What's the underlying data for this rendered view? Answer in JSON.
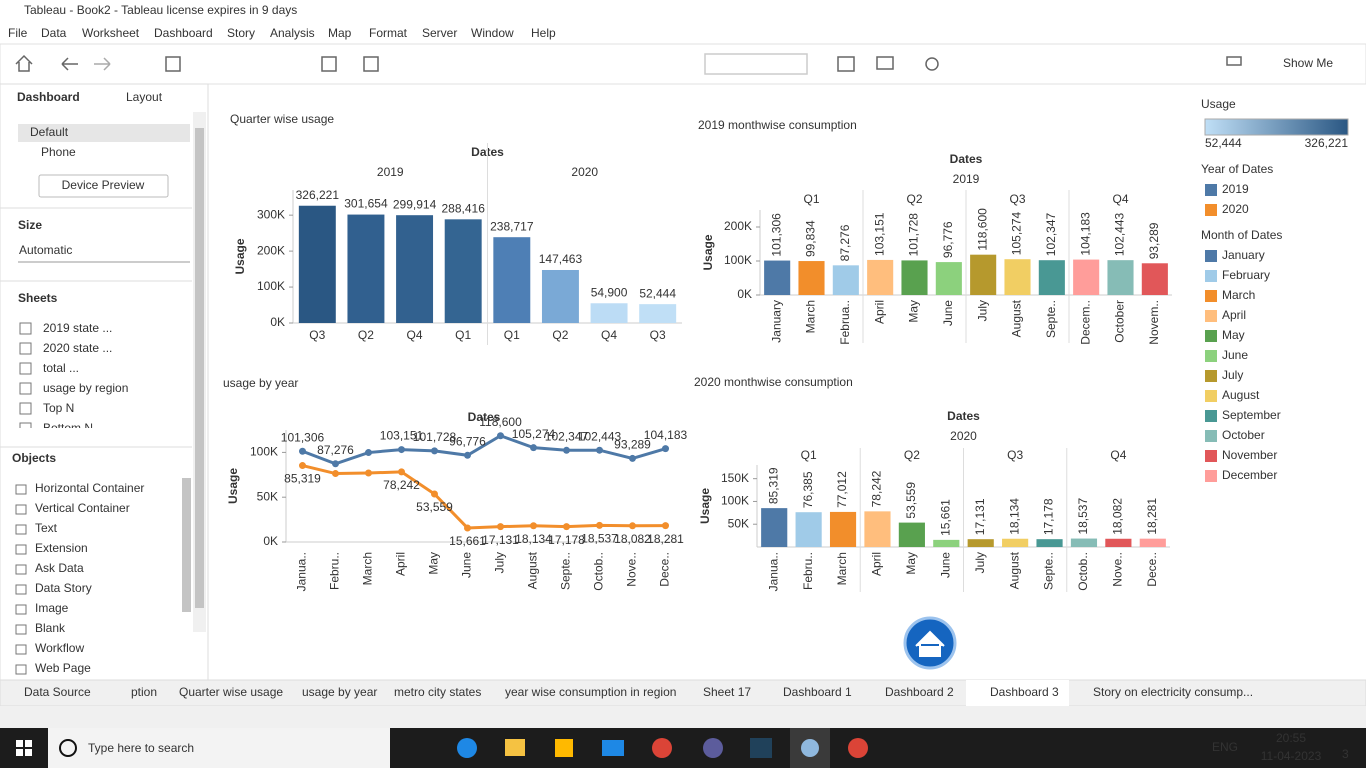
{
  "window": {
    "title": "Tableau - Book2 - Tableau license expires in 9 days"
  },
  "menu": [
    "File",
    "Data",
    "Worksheet",
    "Dashboard",
    "Story",
    "Analysis",
    "Map",
    "Format",
    "Server",
    "Window",
    "Help"
  ],
  "toolbar": {
    "show_me": "Show Me"
  },
  "side": {
    "tabs": [
      "Dashboard",
      "Layout"
    ],
    "devices": [
      "Default",
      "Phone"
    ],
    "device_preview": "Device Preview",
    "size_title": "Size",
    "size_value": "Automatic",
    "sheets_title": "Sheets",
    "sheets": [
      "2019 state ...",
      "2020 state ...",
      "total ...",
      "usage by region",
      "Top N",
      "Bottom N"
    ],
    "objects_title": "Objects",
    "objects": [
      "Horizontal Container",
      "Vertical Container",
      "Text",
      "Extension",
      "Ask Data",
      "Data Story",
      "Image",
      "Blank",
      "Workflow",
      "Web Page"
    ]
  },
  "charts": [
    {
      "type": "bar",
      "title": "Quarter wise usage",
      "column_header": "Dates",
      "y_label": "Usage",
      "ylim": [
        0,
        370000
      ],
      "yticks": [
        {
          "value": 0,
          "label": "0K"
        },
        {
          "value": 100000,
          "label": "100K"
        },
        {
          "value": 200000,
          "label": "200K"
        },
        {
          "value": 300000,
          "label": "300K"
        }
      ],
      "groups": [
        {
          "label": "2019",
          "categories": [
            "Q3",
            "Q2",
            "Q4",
            "Q1"
          ],
          "values": [
            326221,
            301654,
            299914,
            288416
          ],
          "value_labels": [
            "326,221",
            "301,654",
            "299,914",
            "288,416"
          ],
          "colors": [
            "#2a5783",
            "#31608f",
            "#32618f",
            "#346592"
          ]
        },
        {
          "label": "2020",
          "categories": [
            "Q1",
            "Q2",
            "Q4",
            "Q3"
          ],
          "values": [
            238717,
            147463,
            54900,
            52444
          ],
          "value_labels": [
            "238,717",
            "147,463",
            "54,900",
            "52,444"
          ],
          "colors": [
            "#4e7fb5",
            "#7aa9d6",
            "#bcdcf5",
            "#c0dff6"
          ]
        }
      ]
    },
    {
      "type": "bar",
      "title": "2019 monthwise consumption",
      "column_header": "Dates",
      "year": "2019",
      "y_label": "Usage",
      "ylim": [
        0,
        250000
      ],
      "yticks": [
        {
          "value": 0,
          "label": "0K"
        },
        {
          "value": 100000,
          "label": "100K"
        },
        {
          "value": 200000,
          "label": "200K"
        }
      ],
      "groups": [
        {
          "label": "Q1",
          "categories": [
            "January",
            "March",
            "Februa.."
          ],
          "values": [
            101306,
            99834,
            87276
          ],
          "value_labels": [
            "101,306",
            "99,834",
            "87,276"
          ],
          "colors": [
            "#4e79a7",
            "#f28e2b",
            "#a0cbe8"
          ]
        },
        {
          "label": "Q2",
          "categories": [
            "April",
            "May",
            "June"
          ],
          "values": [
            103151,
            101728,
            96776
          ],
          "value_labels": [
            "103,151",
            "101,728",
            "96,776"
          ],
          "colors": [
            "#ffbe7d",
            "#59a14f",
            "#8cd17d"
          ]
        },
        {
          "label": "Q3",
          "categories": [
            "July",
            "August",
            "Septe.."
          ],
          "values": [
            118600,
            105274,
            102347
          ],
          "value_labels": [
            "118,600",
            "105,274",
            "102,347"
          ],
          "colors": [
            "#b6992d",
            "#f1ce63",
            "#499894"
          ]
        },
        {
          "label": "Q4",
          "categories": [
            "Decem..",
            "October",
            "Novem.."
          ],
          "values": [
            104183,
            102443,
            93289
          ],
          "value_labels": [
            "104,183",
            "102,443",
            "93,289"
          ],
          "colors": [
            "#ff9d9a",
            "#86bcb6",
            "#e15759"
          ]
        }
      ]
    },
    {
      "type": "line",
      "title": "usage by year",
      "column_header": "Dates",
      "y_label": "Usage",
      "ylim": [
        0,
        125000
      ],
      "yticks": [
        {
          "value": 0,
          "label": "0K"
        },
        {
          "value": 50000,
          "label": "50K"
        },
        {
          "value": 100000,
          "label": "100K"
        }
      ],
      "categories": [
        "Janua..",
        "Febru..",
        "March",
        "April",
        "May",
        "June",
        "July",
        "August",
        "Septe..",
        "Octob..",
        "Nove..",
        "Dece.."
      ],
      "series": [
        {
          "name": "2019",
          "color": "#4e79a7",
          "values": [
            101306,
            87276,
            99834,
            103151,
            101728,
            96776,
            118600,
            105274,
            102347,
            102443,
            93289,
            104183
          ],
          "value_labels": [
            "101,306",
            "87,276",
            null,
            "103,151",
            "101,728",
            "96,776",
            "118,600",
            "105,274",
            "102,347",
            "102,443",
            "93,289",
            "104,183"
          ]
        },
        {
          "name": "2020",
          "color": "#f28e2b",
          "values": [
            85319,
            76385,
            77012,
            78242,
            53559,
            15661,
            17131,
            18134,
            17178,
            18537,
            18082,
            18281
          ],
          "value_labels": [
            "85,319",
            null,
            null,
            "78,242",
            "53,559",
            "15,661",
            "17,131",
            "18,134",
            "17,178",
            "18,537",
            "18,082",
            "18,281"
          ]
        }
      ]
    },
    {
      "type": "bar",
      "title": "2020 monthwise consumption",
      "column_header": "Dates",
      "year": "2020",
      "y_label": "Usage",
      "ylim": [
        0,
        180000
      ],
      "yticks": [
        {
          "value": 50000,
          "label": "50K"
        },
        {
          "value": 100000,
          "label": "100K"
        },
        {
          "value": 150000,
          "label": "150K"
        }
      ],
      "groups": [
        {
          "label": "Q1",
          "categories": [
            "Janua..",
            "Febru..",
            "March"
          ],
          "values": [
            85319,
            76385,
            77012
          ],
          "value_labels": [
            "85,319",
            "76,385",
            "77,012"
          ],
          "colors": [
            "#4e79a7",
            "#a0cbe8",
            "#f28e2b"
          ]
        },
        {
          "label": "Q2",
          "categories": [
            "April",
            "May",
            "June"
          ],
          "values": [
            78242,
            53559,
            15661
          ],
          "value_labels": [
            "78,242",
            "53,559",
            "15,661"
          ],
          "colors": [
            "#ffbe7d",
            "#59a14f",
            "#8cd17d"
          ]
        },
        {
          "label": "Q3",
          "categories": [
            "July",
            "August",
            "Septe.."
          ],
          "values": [
            17131,
            18134,
            17178
          ],
          "value_labels": [
            "17,131",
            "18,134",
            "17,178"
          ],
          "colors": [
            "#b6992d",
            "#f1ce63",
            "#499894"
          ]
        },
        {
          "label": "Q4",
          "categories": [
            "Octob..",
            "Nove..",
            "Dece.."
          ],
          "values": [
            18537,
            18082,
            18281
          ],
          "value_labels": [
            "18,537",
            "18,082",
            "18,281"
          ],
          "colors": [
            "#86bcb6",
            "#e15759",
            "#ff9d9a"
          ]
        }
      ]
    }
  ],
  "legend": {
    "usage_title": "Usage",
    "usage_range": [
      {
        "value": 52444,
        "label": "52,444"
      },
      {
        "value": 326221,
        "label": "326,221"
      }
    ],
    "gradient": [
      "#c0dff6",
      "#2a5783"
    ],
    "year_title": "Year of Dates",
    "month_title": "Month of Dates",
    "months": [
      {
        "name": "January",
        "color": "#4e79a7"
      },
      {
        "name": "February",
        "color": "#a0cbe8"
      },
      {
        "name": "March",
        "color": "#f28e2b"
      },
      {
        "name": "April",
        "color": "#ffbe7d"
      },
      {
        "name": "May",
        "color": "#59a14f"
      },
      {
        "name": "June",
        "color": "#8cd17d"
      },
      {
        "name": "July",
        "color": "#b6992d"
      },
      {
        "name": "August",
        "color": "#f1ce63"
      },
      {
        "name": "September",
        "color": "#499894"
      },
      {
        "name": "October",
        "color": "#86bcb6"
      },
      {
        "name": "November",
        "color": "#e15759"
      },
      {
        "name": "December",
        "color": "#ff9d9a"
      }
    ]
  },
  "tabs": [
    "Data Source",
    "ption",
    "Quarter wise usage",
    "usage by year",
    "metro city states",
    "year wise consumption in region",
    "Sheet 17",
    "Dashboard 1",
    "Dashboard 2",
    "Dashboard 3",
    "Story on electricity consump..."
  ],
  "taskbar": {
    "search": "Type here to search",
    "lang": "ENG",
    "time": "20:55",
    "date": "11-04-2023",
    "badge": "3"
  }
}
